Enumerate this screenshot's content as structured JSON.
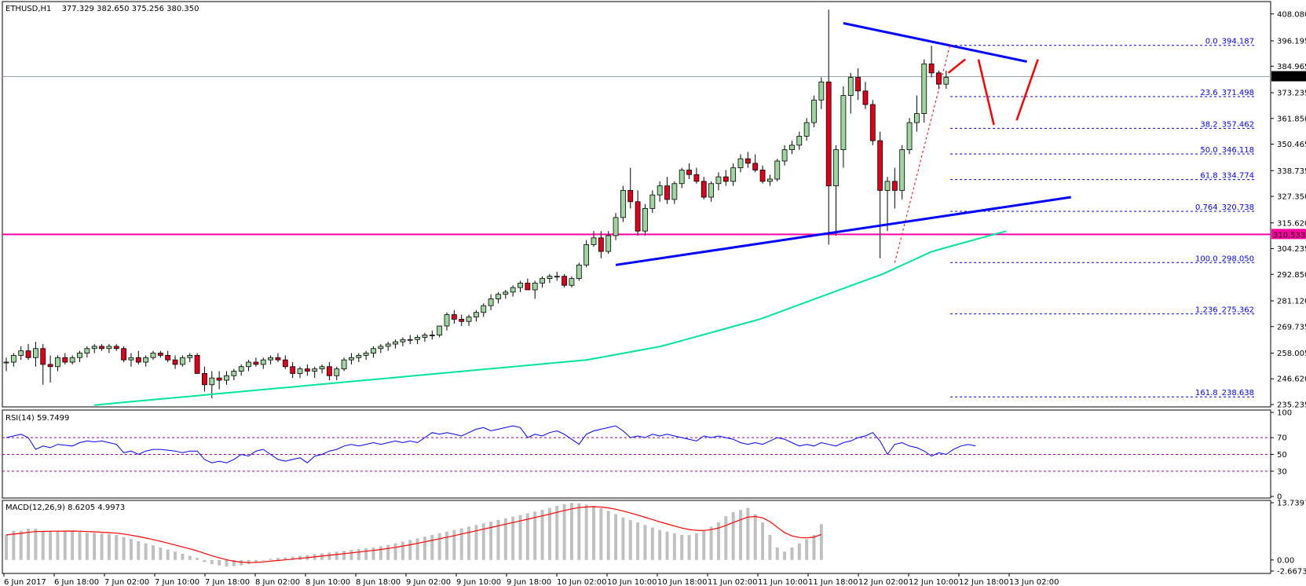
{
  "header": {
    "symbol": "ETHUSD,H1",
    "ohlc": "377.329 382.650 375.256 380.350"
  },
  "colors": {
    "bull_fill": "#9fd59f",
    "bear_fill": "#e0001b",
    "candle_edge": "#000000",
    "sma": "#00e59a",
    "pivot_line": "#ff00a0",
    "trendline": "#0000ff",
    "projection": "#ff0000",
    "fib": "#0000ff",
    "rsi_line": "#0000ff",
    "rsi_levels": "#a000a0",
    "macd_hist": "#c0c0c0",
    "macd_signal": "#ff0000"
  },
  "chart_data": [
    {
      "type": "candlestick",
      "title": "ETHUSD,H1",
      "ohlc_last": {
        "open": 377.329,
        "high": 382.65,
        "low": 375.256,
        "close": 380.35
      },
      "current_price_label": "380.350",
      "horizontal_level_label": "310.533",
      "horizontal_level": 310.533,
      "ylim": [
        235.235,
        408.0
      ],
      "y_ticks": [
        "408.080",
        "396.195",
        "384.965",
        "373.235",
        "361.850",
        "350.465",
        "338.735",
        "327.350",
        "315.620",
        "304.235",
        "292.850",
        "281.120",
        "269.735",
        "258.005",
        "246.620",
        "235.235"
      ],
      "x_ticks": [
        "6 Jun 2017",
        "6 Jun 18:00",
        "7 Jun 02:00",
        "7 Jun 10:00",
        "7 Jun 18:00",
        "8 Jun 02:00",
        "8 Jun 10:00",
        "8 Jun 18:00",
        "9 Jun 02:00",
        "9 Jun 10:00",
        "9 Jun 18:00",
        "10 Jun 02:00",
        "10 Jun 10:00",
        "10 Jun 18:00",
        "11 Jun 02:00",
        "11 Jun 10:00",
        "11 Jun 18:00",
        "12 Jun 02:00",
        "12 Jun 10:00",
        "12 Jun 18:00",
        "13 Jun 02:00"
      ],
      "fibonacci": [
        {
          "label": "0.0",
          "value": "394.187",
          "price": 394.187
        },
        {
          "label": "23.6",
          "value": "371.498",
          "price": 371.498
        },
        {
          "label": "38.2",
          "value": "357.462",
          "price": 357.462
        },
        {
          "label": "50.0",
          "value": "346.118",
          "price": 346.118
        },
        {
          "label": "61.8",
          "value": "334.774",
          "price": 334.774
        },
        {
          "label": "0.764",
          "value": "320.738",
          "price": 320.738
        },
        {
          "label": "100.0",
          "value": "298.050",
          "price": 298.05
        },
        {
          "label": "1.236",
          "value": "275.362",
          "price": 275.362
        },
        {
          "label": "161.8",
          "value": "238.638",
          "price": 238.638
        }
      ],
      "candles": [
        [
          254,
          256,
          250,
          254
        ],
        [
          254,
          258,
          252,
          257
        ],
        [
          257,
          261,
          255,
          259
        ],
        [
          259,
          262,
          255,
          256
        ],
        [
          256,
          263,
          252,
          260
        ],
        [
          260,
          262,
          244,
          253
        ],
        [
          253,
          257,
          245,
          252
        ],
        [
          252,
          257,
          250,
          256
        ],
        [
          256,
          258,
          253,
          254
        ],
        [
          254,
          257,
          253,
          256
        ],
        [
          256,
          259,
          254,
          258
        ],
        [
          258,
          261,
          256,
          260
        ],
        [
          260,
          262,
          258,
          261
        ],
        [
          261,
          262,
          259,
          260
        ],
        [
          260,
          262,
          258,
          261
        ],
        [
          261,
          262,
          259,
          260
        ],
        [
          260,
          261,
          254,
          255
        ],
        [
          255,
          258,
          252,
          256
        ],
        [
          256,
          259,
          253,
          254
        ],
        [
          254,
          257,
          252,
          256
        ],
        [
          256,
          259,
          255,
          258
        ],
        [
          258,
          259,
          256,
          257
        ],
        [
          257,
          259,
          254,
          255
        ],
        [
          255,
          257,
          251,
          253
        ],
        [
          253,
          257,
          252,
          256
        ],
        [
          256,
          258,
          254,
          257
        ],
        [
          257,
          258,
          250,
          249
        ],
        [
          249,
          252,
          241,
          244
        ],
        [
          244,
          250,
          238,
          247
        ],
        [
          247,
          250,
          242,
          246
        ],
        [
          246,
          250,
          244,
          248
        ],
        [
          248,
          251,
          246,
          250
        ],
        [
          250,
          253,
          248,
          252
        ],
        [
          252,
          255,
          250,
          254
        ],
        [
          254,
          256,
          252,
          253
        ],
        [
          253,
          256,
          251,
          255
        ],
        [
          255,
          257,
          253,
          256
        ],
        [
          256,
          258,
          254,
          255
        ],
        [
          255,
          257,
          251,
          252
        ],
        [
          252,
          254,
          247,
          249
        ],
        [
          249,
          252,
          247,
          251
        ],
        [
          251,
          253,
          248,
          250
        ],
        [
          250,
          252,
          247,
          251
        ],
        [
          251,
          253,
          249,
          252
        ],
        [
          252,
          254,
          246,
          248
        ],
        [
          248,
          252,
          246,
          251
        ],
        [
          251,
          256,
          250,
          255
        ],
        [
          255,
          258,
          253,
          256
        ],
        [
          256,
          258,
          254,
          257
        ],
        [
          257,
          259,
          255,
          258
        ],
        [
          258,
          261,
          256,
          260
        ],
        [
          260,
          262,
          258,
          261
        ],
        [
          261,
          263,
          259,
          262
        ],
        [
          262,
          264,
          260,
          263
        ],
        [
          263,
          265,
          261,
          264
        ],
        [
          264,
          266,
          262,
          264
        ],
        [
          264,
          266,
          262,
          265
        ],
        [
          265,
          267,
          263,
          266
        ],
        [
          266,
          268,
          264,
          266
        ],
        [
          266,
          270,
          265,
          270
        ],
        [
          270,
          276,
          268,
          275
        ],
        [
          275,
          277,
          271,
          273
        ],
        [
          273,
          275,
          270,
          272
        ],
        [
          272,
          275,
          270,
          274
        ],
        [
          274,
          277,
          272,
          276
        ],
        [
          276,
          280,
          274,
          279
        ],
        [
          279,
          284,
          277,
          282
        ],
        [
          282,
          285,
          280,
          284
        ],
        [
          284,
          286,
          282,
          285
        ],
        [
          285,
          288,
          283,
          287
        ],
        [
          287,
          290,
          285,
          289
        ],
        [
          289,
          291,
          286,
          286
        ],
        [
          286,
          290,
          282,
          289
        ],
        [
          289,
          292,
          287,
          291
        ],
        [
          291,
          293,
          289,
          292
        ],
        [
          292,
          294,
          290,
          292
        ],
        [
          292,
          293,
          287,
          288
        ],
        [
          288,
          292,
          287,
          291
        ],
        [
          291,
          298,
          290,
          297
        ],
        [
          297,
          308,
          296,
          306
        ],
        [
          306,
          312,
          305,
          309
        ],
        [
          309,
          312,
          300,
          303
        ],
        [
          303,
          312,
          302,
          310
        ],
        [
          310,
          320,
          308,
          318
        ],
        [
          318,
          332,
          316,
          330
        ],
        [
          330,
          340,
          322,
          325
        ],
        [
          325,
          330,
          310,
          312
        ],
        [
          312,
          324,
          310,
          322
        ],
        [
          322,
          330,
          320,
          328
        ],
        [
          328,
          334,
          325,
          332
        ],
        [
          332,
          336,
          324,
          326
        ],
        [
          326,
          334,
          324,
          333
        ],
        [
          333,
          340,
          331,
          339
        ],
        [
          339,
          342,
          335,
          337
        ],
        [
          337,
          340,
          333,
          334
        ],
        [
          334,
          336,
          326,
          327
        ],
        [
          327,
          334,
          325,
          333
        ],
        [
          333,
          338,
          330,
          336
        ],
        [
          336,
          339,
          332,
          334
        ],
        [
          334,
          342,
          332,
          340
        ],
        [
          340,
          346,
          338,
          344
        ],
        [
          344,
          347,
          340,
          342
        ],
        [
          342,
          346,
          338,
          339
        ],
        [
          339,
          341,
          333,
          334
        ],
        [
          334,
          337,
          332,
          335
        ],
        [
          335,
          344,
          334,
          343
        ],
        [
          343,
          350,
          341,
          348
        ],
        [
          348,
          352,
          346,
          350
        ],
        [
          350,
          356,
          348,
          354
        ],
        [
          354,
          362,
          352,
          360
        ],
        [
          360,
          372,
          358,
          370
        ],
        [
          370,
          380,
          366,
          378
        ],
        [
          378,
          410,
          306,
          332
        ],
        [
          332,
          350,
          310,
          348
        ],
        [
          348,
          376,
          340,
          372
        ],
        [
          372,
          382,
          364,
          380
        ],
        [
          380,
          384,
          370,
          374
        ],
        [
          374,
          378,
          366,
          368
        ],
        [
          368,
          370,
          350,
          352
        ],
        [
          352,
          356,
          300,
          330
        ],
        [
          330,
          336,
          312,
          334
        ],
        [
          334,
          340,
          322,
          330
        ],
        [
          330,
          350,
          326,
          348
        ],
        [
          348,
          362,
          346,
          360
        ],
        [
          360,
          372,
          356,
          364
        ],
        [
          364,
          388,
          360,
          386
        ],
        [
          386,
          394,
          380,
          382
        ],
        [
          382,
          383,
          375,
          377
        ],
        [
          377,
          383,
          375,
          380
        ]
      ],
      "sma_100": [
        235,
        236,
        237,
        238,
        239,
        240,
        241,
        242,
        243,
        244,
        245,
        246,
        247,
        248,
        249,
        250,
        251,
        252,
        253,
        254,
        255,
        257,
        259,
        261,
        264,
        267,
        270,
        273,
        277,
        281,
        285,
        289,
        293,
        298,
        303,
        306,
        309,
        312
      ]
    },
    {
      "type": "line",
      "title": "RSI(14) 59.7499",
      "ylim": [
        0,
        100
      ],
      "y_ticks": [
        "100",
        "70",
        "50",
        "30",
        "0"
      ],
      "levels": [
        70,
        50,
        30
      ],
      "values": [
        70,
        72,
        74,
        70,
        56,
        60,
        58,
        62,
        61,
        60,
        64,
        66,
        65,
        66,
        64,
        62,
        52,
        54,
        50,
        54,
        56,
        56,
        55,
        54,
        52,
        54,
        54,
        44,
        40,
        42,
        40,
        44,
        50,
        48,
        54,
        56,
        50,
        44,
        42,
        44,
        46,
        40,
        48,
        50,
        54,
        56,
        60,
        62,
        60,
        62,
        64,
        62,
        64,
        66,
        64,
        66,
        64,
        70,
        76,
        74,
        76,
        74,
        72,
        76,
        80,
        82,
        78,
        80,
        82,
        84,
        82,
        70,
        74,
        72,
        76,
        78,
        74,
        68,
        62,
        74,
        78,
        80,
        82,
        84,
        78,
        70,
        72,
        70,
        74,
        72,
        74,
        72,
        70,
        68,
        66,
        72,
        70,
        72,
        70,
        68,
        64,
        62,
        64,
        62,
        66,
        70,
        68,
        64,
        60,
        62,
        60,
        64,
        62,
        60,
        64,
        66,
        70,
        72,
        76,
        66,
        50,
        62,
        64,
        60,
        58,
        54,
        48,
        52,
        50,
        56,
        60,
        62,
        60
      ]
    },
    {
      "type": "bar",
      "title": "MACD(12,26,9) 8.6205 4.9973",
      "ylim": [
        -2.6673,
        13.7397
      ],
      "y_ticks": [
        "13.7397",
        "0.00",
        "-2.6673"
      ],
      "histogram": [
        6,
        7,
        7,
        7.5,
        7.5,
        7,
        7,
        7,
        7,
        7,
        6.8,
        6.5,
        6.5,
        6.3,
        6.2,
        6,
        5.5,
        5,
        4.5,
        4,
        3.5,
        3,
        2.5,
        2,
        1.5,
        1,
        0.5,
        -0.5,
        -1,
        -1.3,
        -1.6,
        -1.5,
        -1.3,
        -1,
        -0.5,
        0,
        0.3,
        0.5,
        0.6,
        0.8,
        1,
        1.2,
        1.4,
        1.6,
        1.8,
        2,
        2.2,
        2.4,
        2.6,
        2.8,
        3,
        3.3,
        3.6,
        4,
        4.4,
        4.8,
        5.2,
        5.6,
        6,
        6.4,
        6.8,
        7.2,
        7.6,
        8,
        8.4,
        8.8,
        9.2,
        9.6,
        10,
        10.4,
        10.8,
        11.2,
        11.6,
        12,
        12.5,
        13,
        13.4,
        13.7,
        13.6,
        13.3,
        13,
        12.4,
        11.8,
        11,
        10.2,
        9.6,
        9,
        8.4,
        7.8,
        7.2,
        6.8,
        6.4,
        6,
        6,
        6.4,
        7,
        8,
        9,
        10.5,
        11.5,
        12,
        12.5,
        11,
        9,
        6,
        3,
        2,
        3,
        4,
        5,
        6,
        8.6
      ]
    }
  ]
}
